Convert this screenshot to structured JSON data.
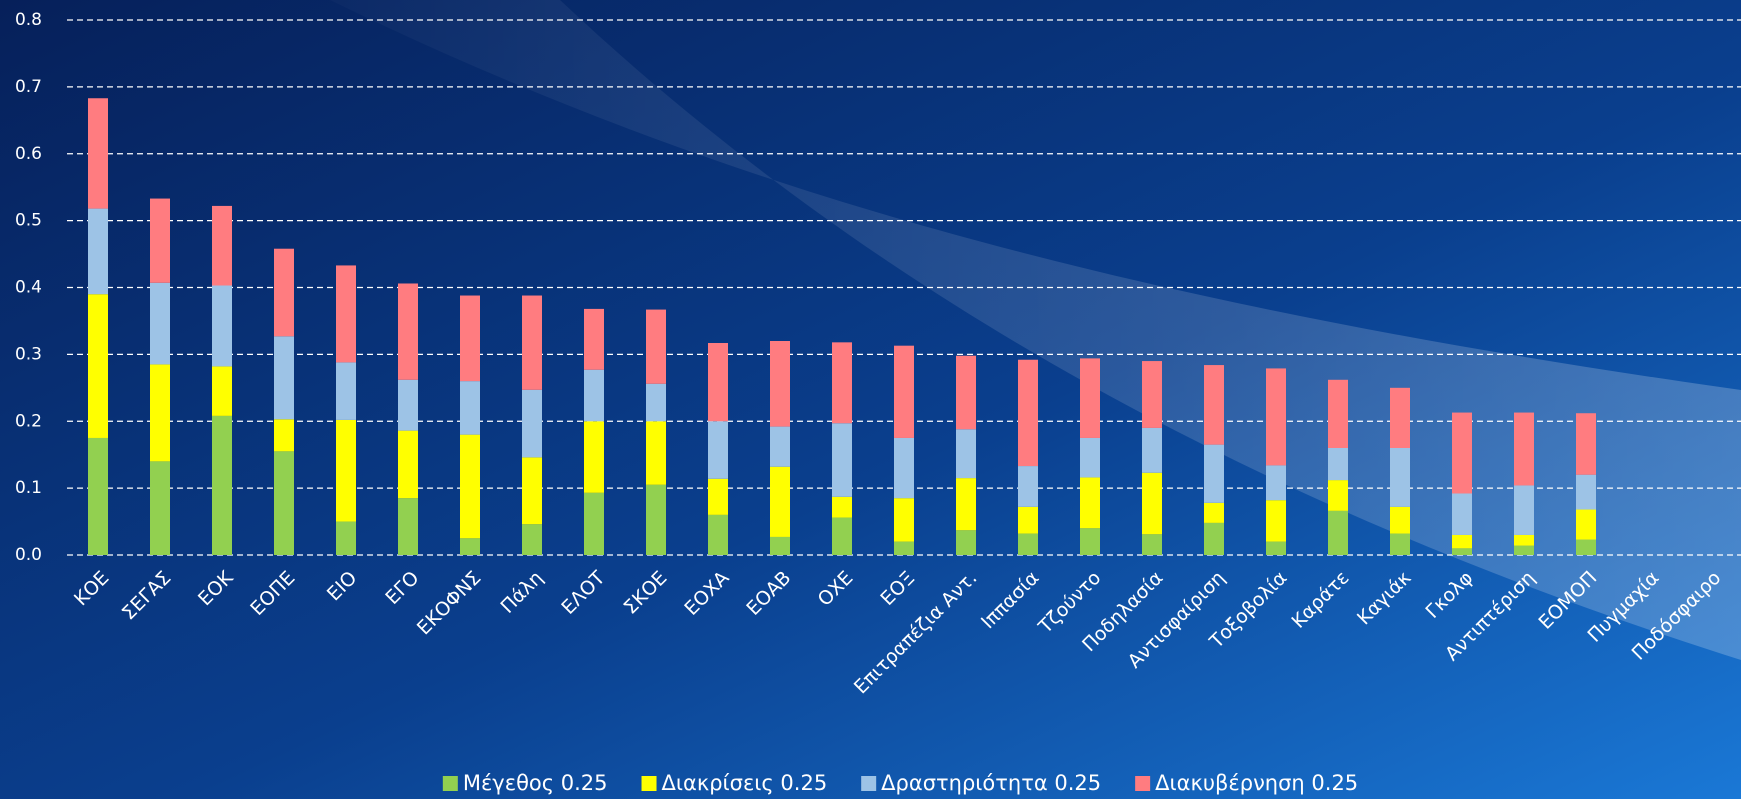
{
  "chart_data": {
    "type": "stacked-bar",
    "categories": [
      "ΚΟΕ",
      "ΣΕΓΑΣ",
      "ΕΟΚ",
      "ΕΟΠΕ",
      "ΕΙΟ",
      "ΕΓΟ",
      "ΕΚΟΦΝΣ",
      "Πάλη",
      "ΕΛΟΤ",
      "ΣΚΟΕ",
      "ΕΟΧΑ",
      "ΕΟΑΒ",
      "ΟΧΕ",
      "ΕΟΞ",
      "Επιτραπέζια Αντ.",
      "Ιππασία",
      "Τζούντο",
      "Ποδηλασία",
      "Αντισφαίριση",
      "Τοξοβολία",
      "Καράτε",
      "Καγιάκ",
      "Γκολφ",
      "Αντιπτέριση",
      "ΕΟΜΟΠ",
      "Πυγμαχία",
      "Ποδόσφαιρο"
    ],
    "series": [
      {
        "name": "Μέγεθος 0.25",
        "color": "#92d050",
        "values": [
          0.175,
          0.14,
          0.208,
          0.155,
          0.05,
          0.085,
          0.025,
          0.046,
          0.093,
          0.105,
          0.06,
          0.027,
          0.056,
          0.02,
          0.037,
          0.032,
          0.04,
          0.031,
          0.048,
          0.02,
          0.066,
          0.032,
          0.01,
          0.014,
          0.023,
          null,
          null
        ]
      },
      {
        "name": "Διακρίσεις 0.25",
        "color": "#ffff00",
        "values": [
          0.215,
          0.145,
          0.074,
          0.048,
          0.152,
          0.101,
          0.155,
          0.1,
          0.107,
          0.095,
          0.054,
          0.105,
          0.031,
          0.065,
          0.078,
          0.04,
          0.076,
          0.092,
          0.03,
          0.062,
          0.046,
          0.04,
          0.02,
          0.016,
          0.045,
          null,
          null
        ]
      },
      {
        "name": "Δραστηριότητα 0.25",
        "color": "#9dc3e6",
        "values": [
          0.128,
          0.122,
          0.121,
          0.124,
          0.086,
          0.076,
          0.08,
          0.101,
          0.077,
          0.056,
          0.086,
          0.06,
          0.11,
          0.09,
          0.073,
          0.061,
          0.059,
          0.067,
          0.087,
          0.052,
          0.048,
          0.088,
          0.062,
          0.074,
          0.052,
          null,
          null
        ]
      },
      {
        "name": "Διακυβέρνηση 0.25",
        "color": "#ff7c80",
        "values": [
          0.165,
          0.126,
          0.119,
          0.131,
          0.145,
          0.144,
          0.128,
          0.141,
          0.091,
          0.111,
          0.117,
          0.128,
          0.121,
          0.138,
          0.11,
          0.159,
          0.119,
          0.1,
          0.119,
          0.145,
          0.102,
          0.09,
          0.121,
          0.109,
          0.092,
          null,
          null
        ]
      }
    ],
    "ylim": [
      0,
      0.8
    ],
    "yticks": [
      {
        "value": 0,
        "label": "0.0"
      },
      0.1,
      0.2,
      0.3,
      0.4,
      0.5,
      0.6,
      0.7,
      0.8
    ],
    "grid": true,
    "legend": "bottom"
  }
}
